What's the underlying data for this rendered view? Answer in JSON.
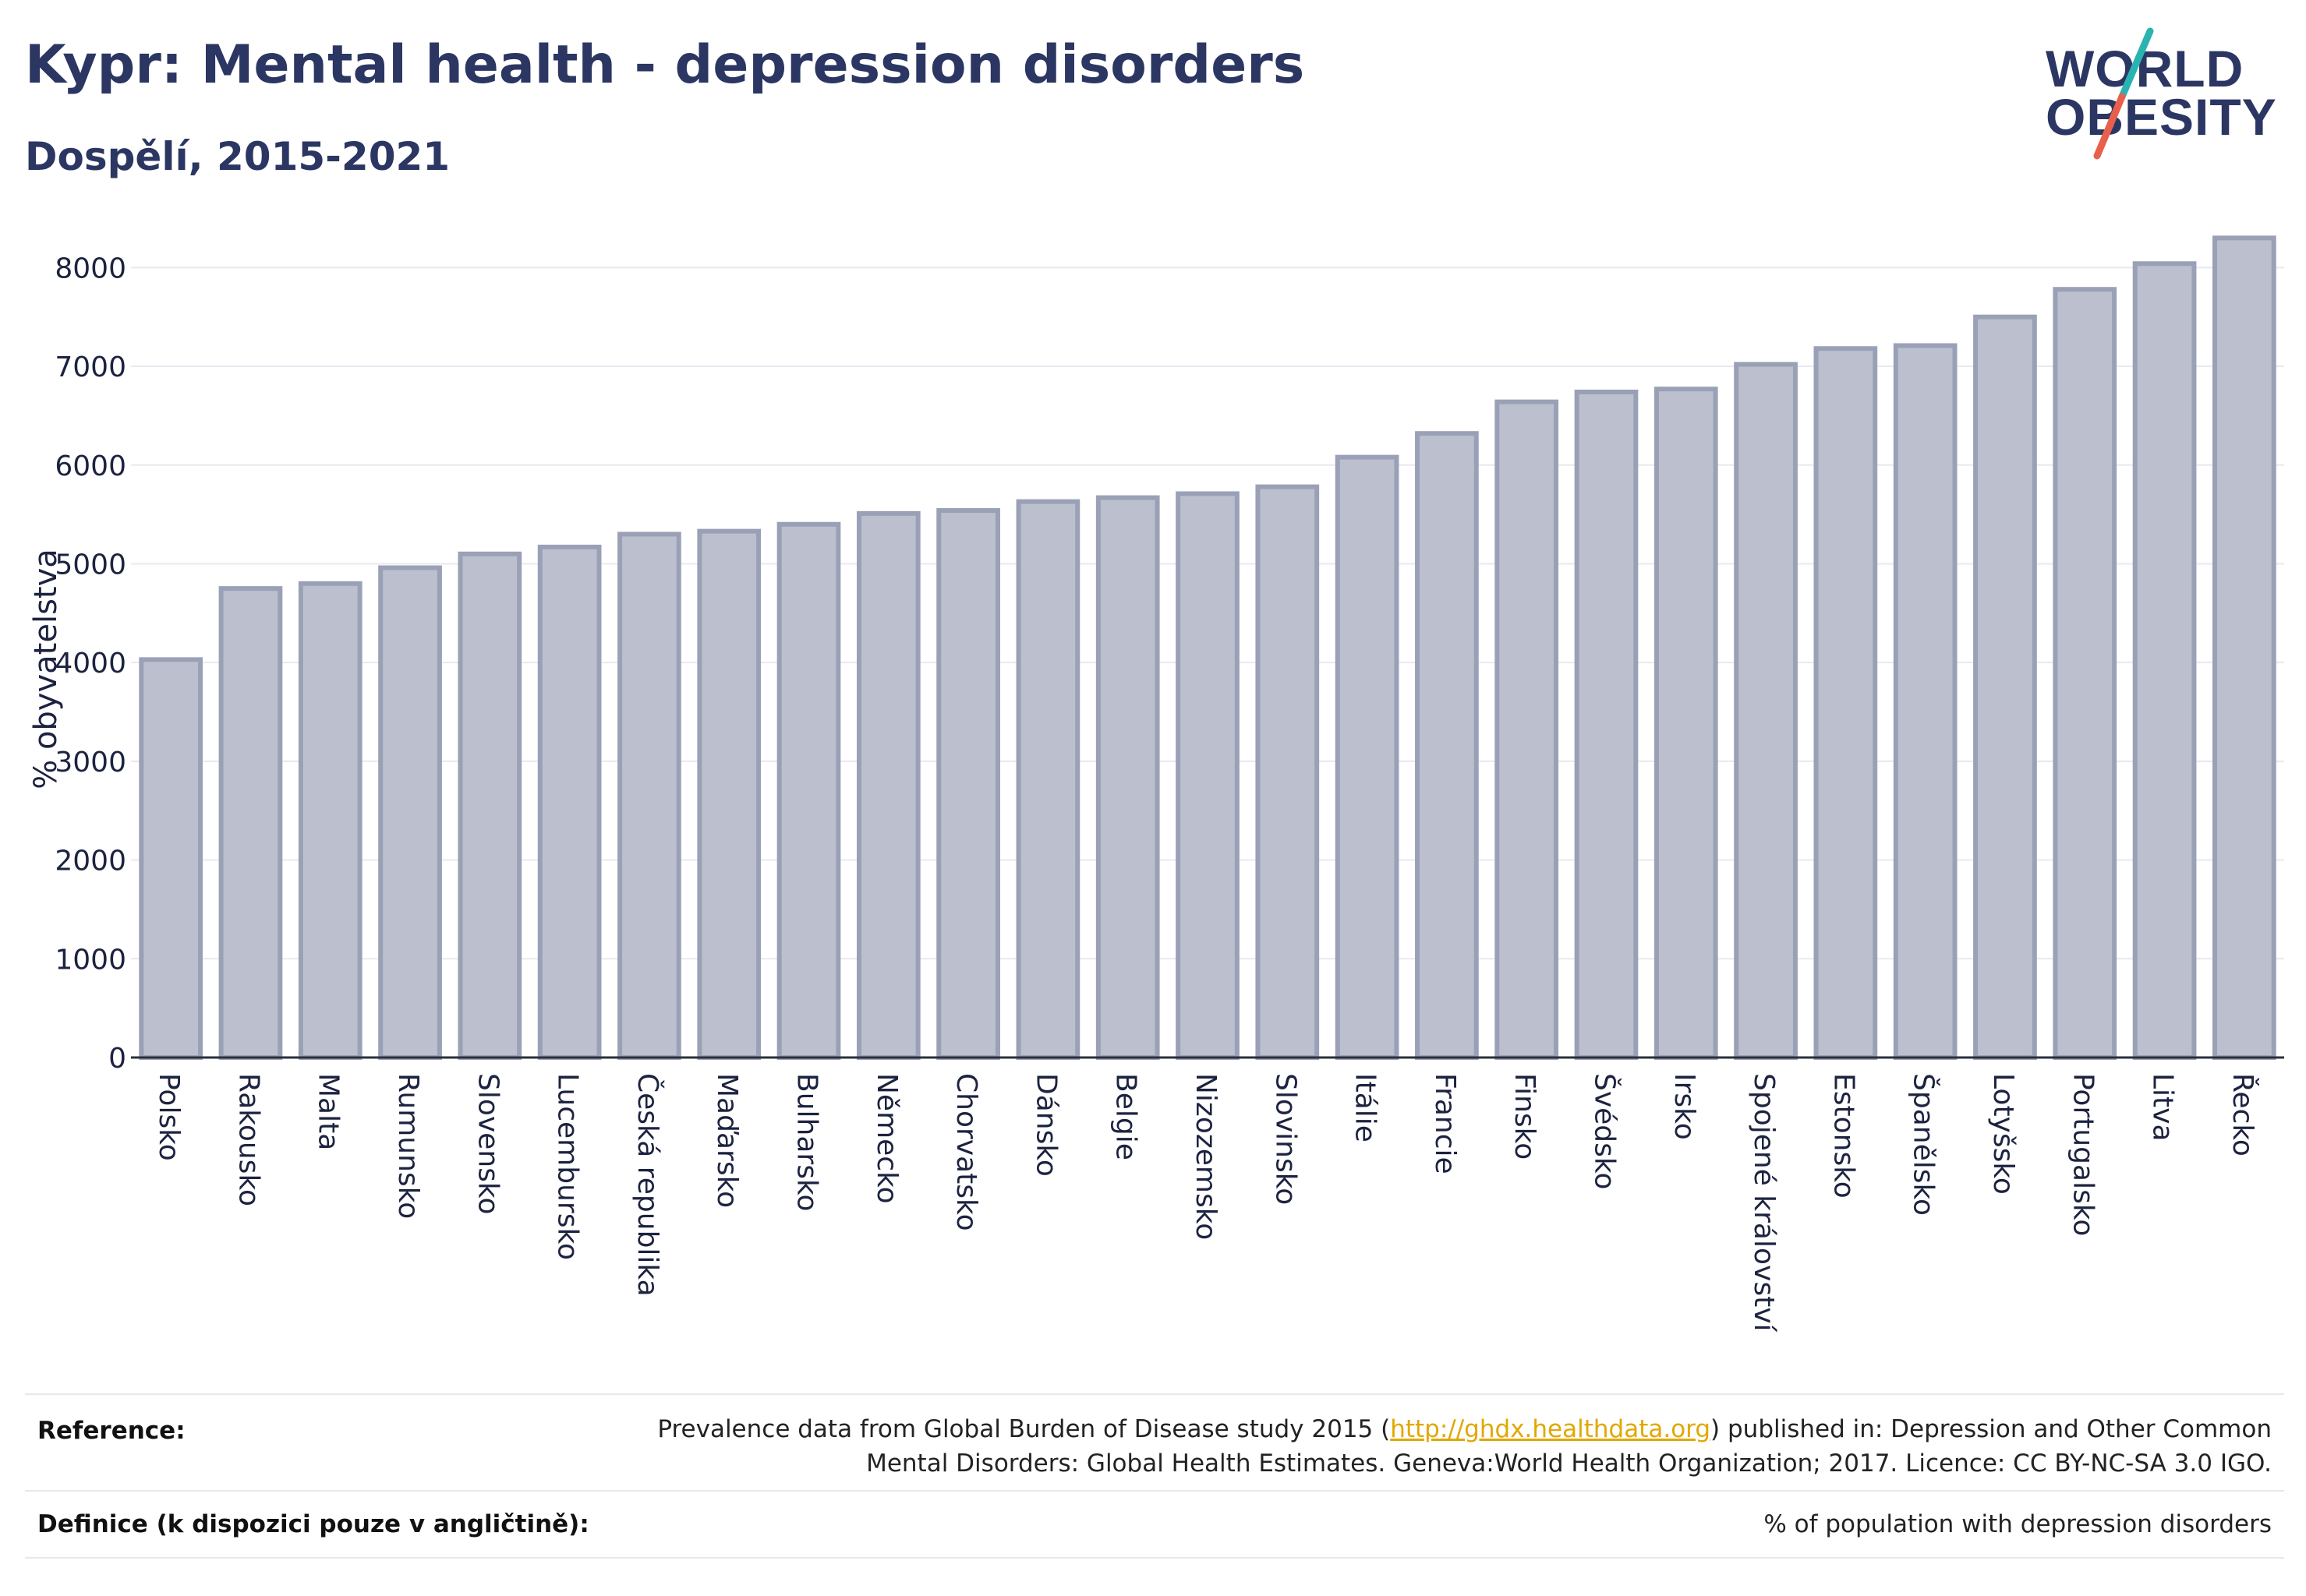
{
  "header": {
    "title": "Kypr: Mental health - depression disorders",
    "subtitle": "Dospělí, 2015-2021"
  },
  "logo": {
    "line1": "WORLD",
    "line2": "OBESITY",
    "accent_colors": [
      "#2ab3b1",
      "#e8604c"
    ]
  },
  "colors": {
    "bar_fill": "#bcc0ce",
    "bar_stroke": "#9aa0b6",
    "text_primary": "#2b3662",
    "grid": "#e8eaf0",
    "link": "#e0a800"
  },
  "chart_data": {
    "type": "bar",
    "title": "Kypr: Mental health - depression disorders",
    "subtitle": "Dospělí, 2015-2021",
    "xlabel": "",
    "ylabel": "% obyvatelstva",
    "ylim": [
      0,
      8500
    ],
    "yticks": [
      0,
      1000,
      2000,
      3000,
      4000,
      5000,
      6000,
      7000,
      8000
    ],
    "grid": true,
    "categories": [
      "Polsko",
      "Rakousko",
      "Malta",
      "Rumunsko",
      "Slovensko",
      "Lucembursko",
      "Česká republika",
      "Maďarsko",
      "Bulharsko",
      "Německo",
      "Chorvatsko",
      "Dánsko",
      "Belgie",
      "Nizozemsko",
      "Slovinsko",
      "Itálie",
      "Francie",
      "Finsko",
      "Švédsko",
      "Irsko",
      "Spojené království",
      "Estonsko",
      "Španělsko",
      "Lotyšsko",
      "Portugalsko",
      "Litva",
      "Řecko"
    ],
    "values": [
      4030,
      4750,
      4800,
      4960,
      5100,
      5170,
      5300,
      5330,
      5400,
      5510,
      5540,
      5630,
      5670,
      5710,
      5780,
      6080,
      6320,
      6640,
      6740,
      6770,
      7020,
      7180,
      7210,
      7500,
      7780,
      8040,
      8300
    ]
  },
  "footer": {
    "reference_label": "Reference:",
    "reference_pre": "Prevalence data from Global Burden of Disease study 2015 (",
    "reference_link": "http://ghdx.healthdata.org",
    "reference_post": ") published in: Depression and Other Common",
    "reference_line2": "Mental Disorders: Global Health Estimates. Geneva:World Health Organization; 2017. Licence: CC BY-NC-SA 3.0 IGO.",
    "definition_label": "Definice (k dispozici pouze v angličtině):",
    "definition_text": "% of population with depression disorders"
  }
}
